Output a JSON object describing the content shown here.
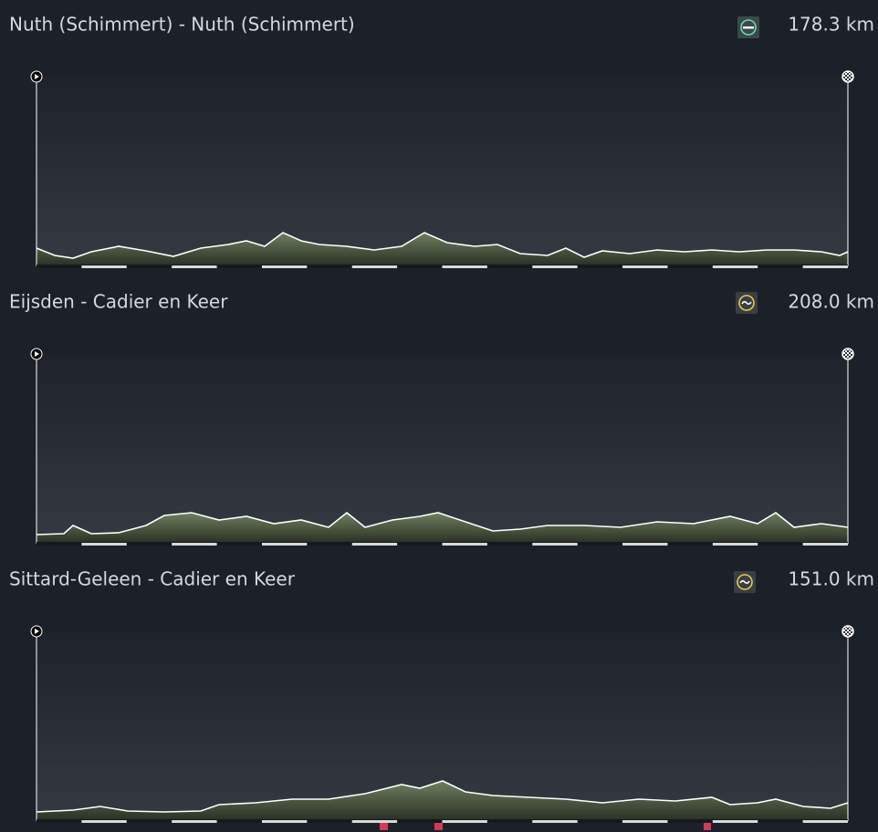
{
  "stages": [
    {
      "title": "Nuth (Schimmert) - Nuth (Schimmert)",
      "distance": "178.3 km"
    },
    {
      "title": "Eijsden - Cadier en Keer",
      "distance": "208.0 km"
    },
    {
      "title": "Sittard-Geleen - Cadier en Keer",
      "distance": "151.0 km"
    }
  ]
}
